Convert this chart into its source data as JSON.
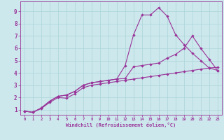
{
  "title": "",
  "xlabel": "Windchill (Refroidissement éolien,°C)",
  "bg_color": "#cce8ec",
  "grid_color": "#aad4d8",
  "line_color": "#993399",
  "xlim": [
    -0.5,
    23.5
  ],
  "ylim": [
    0.6,
    9.8
  ],
  "xticks": [
    0,
    1,
    2,
    3,
    4,
    5,
    6,
    7,
    8,
    9,
    10,
    11,
    12,
    13,
    14,
    15,
    16,
    17,
    18,
    19,
    20,
    21,
    22,
    23
  ],
  "yticks": [
    1,
    2,
    3,
    4,
    5,
    6,
    7,
    8,
    9
  ],
  "curve1_x": [
    0,
    1,
    2,
    3,
    4,
    5,
    6,
    7,
    8,
    9,
    10,
    11,
    12,
    13,
    14,
    15,
    16,
    17,
    18,
    19,
    20,
    21,
    22,
    23
  ],
  "curve1_y": [
    0.9,
    0.8,
    1.15,
    1.7,
    2.1,
    2.2,
    2.5,
    3.0,
    3.2,
    3.3,
    3.4,
    3.5,
    3.55,
    4.5,
    4.6,
    4.7,
    4.8,
    5.2,
    5.5,
    6.0,
    7.0,
    6.0,
    5.1,
    4.2
  ],
  "curve2_x": [
    0,
    1,
    2,
    3,
    4,
    5,
    6,
    7,
    8,
    9,
    10,
    11,
    12,
    13,
    14,
    15,
    16,
    17,
    18,
    19,
    20,
    21,
    22,
    23
  ],
  "curve2_y": [
    0.9,
    0.8,
    1.15,
    1.7,
    2.1,
    2.2,
    2.5,
    3.0,
    3.2,
    3.3,
    3.4,
    3.5,
    4.6,
    7.1,
    8.7,
    8.7,
    9.3,
    8.6,
    7.1,
    6.3,
    5.6,
    5.0,
    4.4,
    4.2
  ],
  "curve3_x": [
    0,
    1,
    2,
    3,
    4,
    5,
    6,
    7,
    8,
    9,
    10,
    11,
    12,
    13,
    14,
    15,
    16,
    17,
    18,
    19,
    20,
    21,
    22,
    23
  ],
  "curve3_y": [
    0.9,
    0.8,
    1.1,
    1.6,
    2.0,
    1.95,
    2.3,
    2.8,
    3.0,
    3.1,
    3.2,
    3.3,
    3.4,
    3.5,
    3.6,
    3.7,
    3.8,
    3.9,
    4.0,
    4.1,
    4.2,
    4.3,
    4.4,
    4.45
  ]
}
